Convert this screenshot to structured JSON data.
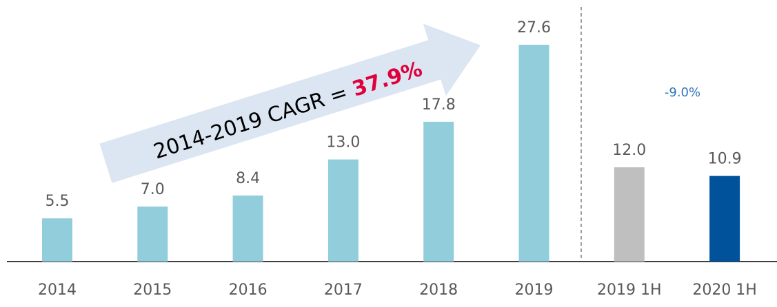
{
  "chart_data": {
    "type": "bar",
    "categories": [
      "2014",
      "2015",
      "2016",
      "2017",
      "2018",
      "2019",
      "2019 1H",
      "2020 1H"
    ],
    "values": [
      5.5,
      7.0,
      8.4,
      13.0,
      17.8,
      27.6,
      12.0,
      10.9
    ],
    "value_labels": [
      "5.5",
      "7.0",
      "8.4",
      "13.0",
      "17.8",
      "27.6",
      "12.0",
      "10.9"
    ],
    "colors": [
      "#92cddc",
      "#92cddc",
      "#92cddc",
      "#92cddc",
      "#92cddc",
      "#92cddc",
      "#bfbfbf",
      "#00539b"
    ],
    "annotations": [
      "2014-2019 CAGR = ",
      "37.9%",
      "-9.0%"
    ]
  }
}
